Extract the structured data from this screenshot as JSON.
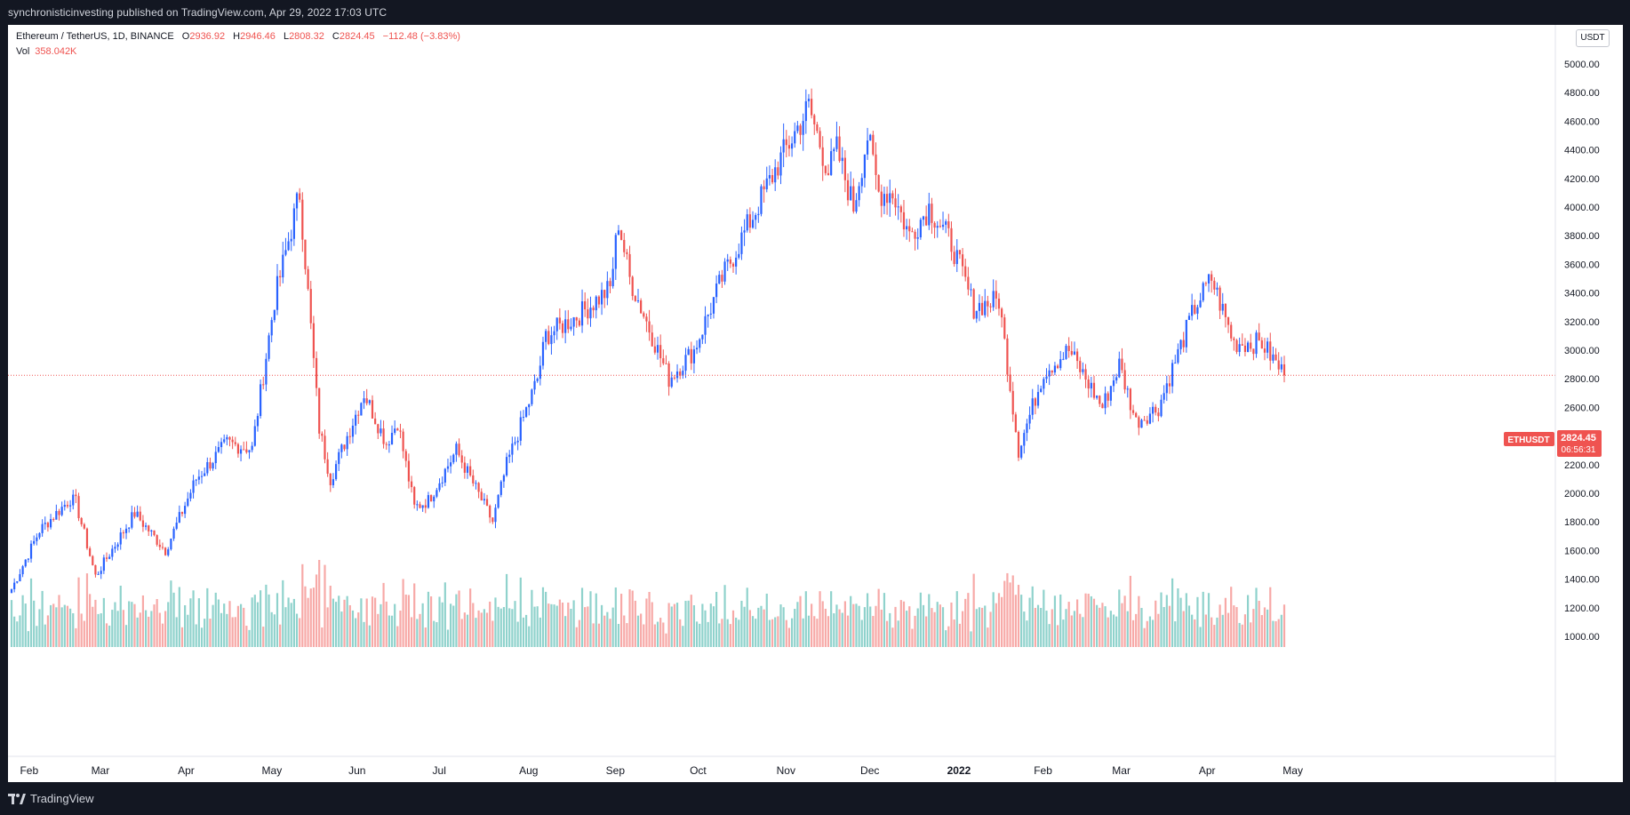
{
  "header": {
    "published": "synchronisticinvesting published on TradingView.com, Apr 29, 2022 17:03 UTC"
  },
  "legend": {
    "symbol": "Ethereum / TetherUS, 1D, BINANCE",
    "open_label": "O",
    "open": "2936.92",
    "high_label": "H",
    "high": "2946.46",
    "low_label": "L",
    "low": "2808.32",
    "close_label": "C",
    "close": "2824.45",
    "change": "−112.48 (−3.83%)",
    "volume_label": "Vol",
    "volume": "358.042K"
  },
  "currency_button": "USDT",
  "price_tag": {
    "symbol": "ETHUSDT",
    "price": "2824.45",
    "countdown": "06:56:31"
  },
  "footer": {
    "brand": "TradingView"
  },
  "colors": {
    "up": "#2962ff",
    "down": "#ef5350",
    "vol_up": "#8fd2cc",
    "vol_down": "#f7a9a7",
    "last_line": "#ef5350"
  },
  "chart_data": {
    "type": "candlestick",
    "y_ticks": [
      1000,
      1200,
      1400,
      1600,
      1800,
      2000,
      2200,
      2400,
      2600,
      2800,
      3000,
      3200,
      3400,
      3600,
      3800,
      4000,
      4200,
      4400,
      4600,
      4800,
      5000
    ],
    "ylim": [
      900,
      5250
    ],
    "x_ticks": [
      "Feb",
      "Mar",
      "Apr",
      "May",
      "Jun",
      "Jul",
      "Aug",
      "Sep",
      "Oct",
      "Nov",
      "Dec",
      "2022",
      "Feb",
      "Mar",
      "Apr",
      "May"
    ],
    "x_range": [
      "2021-01-29",
      "2022-05-15"
    ],
    "last_price": 2824.45,
    "series": [
      {
        "name": "Ethereum / TetherUS, 1D, BINANCE",
        "anchors": [
          [
            "2021-01-29",
            1330
          ],
          [
            "2021-02-08",
            1740
          ],
          [
            "2021-02-19",
            1960
          ],
          [
            "2021-02-21",
            1935
          ],
          [
            "2021-02-28",
            1420
          ],
          [
            "2021-03-14",
            1860
          ],
          [
            "2021-03-25",
            1600
          ],
          [
            "2021-04-05",
            2100
          ],
          [
            "2021-04-16",
            2350
          ],
          [
            "2021-04-25",
            2310
          ],
          [
            "2021-05-03",
            3350
          ],
          [
            "2021-05-12",
            4100
          ],
          [
            "2021-05-19",
            2450
          ],
          [
            "2021-05-23",
            2100
          ],
          [
            "2021-06-04",
            2700
          ],
          [
            "2021-06-12",
            2350
          ],
          [
            "2021-06-16",
            2500
          ],
          [
            "2021-06-22",
            1900
          ],
          [
            "2021-06-27",
            1950
          ],
          [
            "2021-07-07",
            2300
          ],
          [
            "2021-07-20",
            1800
          ],
          [
            "2021-07-25",
            2200
          ],
          [
            "2021-08-05",
            2800
          ],
          [
            "2021-08-08",
            3100
          ],
          [
            "2021-08-20",
            3250
          ],
          [
            "2021-08-31",
            3430
          ],
          [
            "2021-09-03",
            3900
          ],
          [
            "2021-09-07",
            3500
          ],
          [
            "2021-09-21",
            2800
          ],
          [
            "2021-09-30",
            3000
          ],
          [
            "2021-10-10",
            3500
          ],
          [
            "2021-10-20",
            3900
          ],
          [
            "2021-10-30",
            4300
          ],
          [
            "2021-11-10",
            4700
          ],
          [
            "2021-11-17",
            4250
          ],
          [
            "2021-11-20",
            4400
          ],
          [
            "2021-11-26",
            4000
          ],
          [
            "2021-12-01",
            4500
          ],
          [
            "2021-12-05",
            4100
          ],
          [
            "2021-12-10",
            4100
          ],
          [
            "2021-12-16",
            3800
          ],
          [
            "2021-12-23",
            4000
          ],
          [
            "2021-12-31",
            3750
          ],
          [
            "2022-01-08",
            3300
          ],
          [
            "2022-01-17",
            3350
          ],
          [
            "2022-01-24",
            2300
          ],
          [
            "2022-02-02",
            2850
          ],
          [
            "2022-02-11",
            3000
          ],
          [
            "2022-02-23",
            2600
          ],
          [
            "2022-03-01",
            2900
          ],
          [
            "2022-03-07",
            2500
          ],
          [
            "2022-03-15",
            2600
          ],
          [
            "2022-03-28",
            3300
          ],
          [
            "2022-04-03",
            3500
          ],
          [
            "2022-04-11",
            3050
          ],
          [
            "2022-04-21",
            3050
          ],
          [
            "2022-04-29",
            2824
          ]
        ]
      }
    ],
    "volume": {
      "name": "Vol",
      "last": "358.042K"
    }
  }
}
